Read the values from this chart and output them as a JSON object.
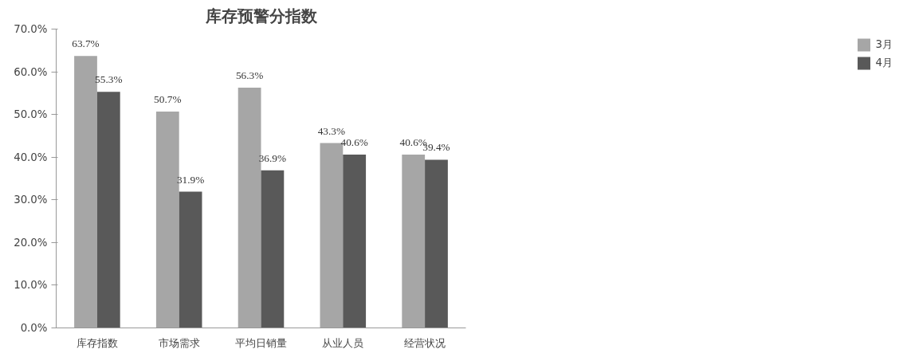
{
  "chart_data": {
    "type": "bar",
    "title": "库存预警分指数",
    "categories": [
      "库存指数",
      "市场需求",
      "平均日销量",
      "从业人员",
      "经营状况"
    ],
    "series": [
      {
        "name": "3月",
        "color": "#a6a6a6",
        "values": [
          63.7,
          50.7,
          56.3,
          43.3,
          40.6
        ],
        "value_labels": [
          "63.7%",
          "50.7%",
          "56.3%",
          "43.3%",
          "40.6%"
        ]
      },
      {
        "name": "4月",
        "color": "#595959",
        "values": [
          55.3,
          31.9,
          36.9,
          40.6,
          39.4
        ],
        "value_labels": [
          "55.3%",
          "31.9%",
          "36.9%",
          "40.6%",
          "39.4%"
        ]
      }
    ],
    "ylim": [
      0,
      70
    ],
    "yticks": [
      {
        "value": 0,
        "label": "0.0%"
      },
      {
        "value": 10,
        "label": "10.0%"
      },
      {
        "value": 20,
        "label": "20.0%"
      },
      {
        "value": 30,
        "label": "30.0%"
      },
      {
        "value": 40,
        "label": "40.0%"
      },
      {
        "value": 50,
        "label": "50.0%"
      },
      {
        "value": 60,
        "label": "60.0%"
      },
      {
        "value": 70,
        "label": "70.0%"
      }
    ],
    "grid": false,
    "legend": "right"
  }
}
